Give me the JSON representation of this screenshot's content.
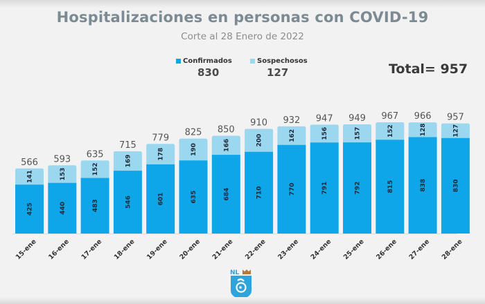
{
  "title": "Hospitalizaciones en personas con COVID-19",
  "subtitle": "Corte al 28 Enero de 2022",
  "legend": [
    {
      "label": "Confirmados",
      "value": "830",
      "color": "#0ea5e9"
    },
    {
      "label": "Sospechosos",
      "value": "127",
      "color": "#9bd7ef"
    }
  ],
  "total_label": "Total= 957",
  "logo": {
    "text": "NL",
    "icon": "nuevo-leon-shield-logo"
  },
  "chart_data": {
    "type": "bar",
    "stacked": true,
    "title": "Hospitalizaciones en personas con COVID-19",
    "subtitle": "Corte al 28 Enero de 2022",
    "xlabel": "",
    "ylabel": "",
    "categories": [
      "15-ene",
      "16-ene",
      "17-ene",
      "18-ene",
      "19-ene",
      "20-ene",
      "21-ene",
      "22-ene",
      "23-ene",
      "24-ene",
      "25-ene",
      "26-ene",
      "27-ene",
      "28-ene"
    ],
    "series": [
      {
        "name": "Confirmados",
        "color": "#0ea5e9",
        "values": [
          425,
          440,
          483,
          546,
          601,
          635,
          684,
          710,
          770,
          791,
          792,
          815,
          838,
          830
        ]
      },
      {
        "name": "Sospechosos",
        "color": "#9bd7ef",
        "values": [
          141,
          153,
          152,
          169,
          178,
          190,
          166,
          200,
          162,
          156,
          157,
          152,
          128,
          127
        ]
      }
    ],
    "totals": [
      566,
      593,
      635,
      715,
      779,
      825,
      850,
      910,
      932,
      947,
      949,
      967,
      966,
      957
    ],
    "ylim": [
      0,
      967
    ],
    "grid": false,
    "legend_position": "top-center"
  }
}
